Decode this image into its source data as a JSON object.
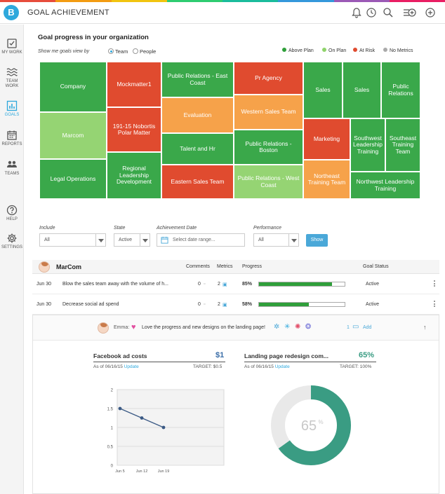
{
  "app": {
    "title": "GOAL ACHIEVEMENT",
    "logo_letter": "B"
  },
  "stripe_colors": [
    "#e74c3c",
    "#f39c12",
    "#f1c40f",
    "#2ecc71",
    "#1abc9c",
    "#3498db",
    "#9b59b6",
    "#e91e63"
  ],
  "header_icons": [
    "bell-icon",
    "clock-icon",
    "search-icon",
    "add-list-icon",
    "add-circle-icon"
  ],
  "sidebar": {
    "items": [
      {
        "label1": "MY WORK",
        "label2": "",
        "icon": "checkbox-icon",
        "active": false
      },
      {
        "label1": "TEAM",
        "label2": "WORK",
        "icon": "waves-icon",
        "active": false
      },
      {
        "label1": "GOALS",
        "label2": "",
        "icon": "bar-chart-icon",
        "active": true
      },
      {
        "label1": "REPORTS",
        "label2": "",
        "icon": "calendar-icon",
        "active": false
      },
      {
        "label1": "TEAMS",
        "label2": "",
        "icon": "people-icon",
        "active": false
      },
      {
        "label1": "HELP",
        "label2": "",
        "icon": "help-icon",
        "active": false
      },
      {
        "label1": "SETTINGS",
        "label2": "",
        "icon": "gear-icon",
        "active": false
      }
    ]
  },
  "overview": {
    "title": "Goal progress in your organization",
    "view_by_label": "Show me goals view by",
    "view_options": [
      {
        "label": "Team",
        "selected": true
      },
      {
        "label": "People",
        "selected": false
      }
    ],
    "legend": [
      {
        "label": "Above Plan",
        "color": "#2f9f3a"
      },
      {
        "label": "On Plan",
        "color": "#8fd36b"
      },
      {
        "label": "At Risk",
        "color": "#e04b2f"
      },
      {
        "label": "No Metrics",
        "color": "#aaaaaa"
      }
    ]
  },
  "treemap": {
    "colors": {
      "above": "#3aa84a",
      "on": "#95d473",
      "risk": "#e04b2f",
      "nometric": "#f6a24a"
    },
    "tiles": [
      {
        "label": "Company",
        "status": "above"
      },
      {
        "label": "Marcom",
        "status": "on"
      },
      {
        "label": "Legal Operations",
        "status": "above"
      },
      {
        "label": "Mockmatter1",
        "status": "risk"
      },
      {
        "label": "191-15 Nobortis Polar Matter",
        "status": "risk"
      },
      {
        "label": "Regional Leadership Development",
        "status": "above"
      },
      {
        "label": "Public Relations - East Coast",
        "status": "above"
      },
      {
        "label": "Evaluation",
        "status": "nometric"
      },
      {
        "label": "Talent and Hr",
        "status": "above"
      },
      {
        "label": "Eastern Sales Team",
        "status": "risk"
      },
      {
        "label": "Pr Agency",
        "status": "risk"
      },
      {
        "label": "Western Sales Team",
        "status": "nometric"
      },
      {
        "label": "Public Relations - Boston",
        "status": "above"
      },
      {
        "label": "Public Relations - West Coast",
        "status": "on"
      },
      {
        "label": "Sales",
        "status": "above"
      },
      {
        "label": "Sales",
        "status": "above"
      },
      {
        "label": "Public Relations",
        "status": "above"
      },
      {
        "label": "Marketing",
        "status": "risk"
      },
      {
        "label": "Northeast Training Team",
        "status": "nometric"
      },
      {
        "label": "Southwest Leadership Training",
        "status": "above"
      },
      {
        "label": "Southeast Training Team",
        "status": "above"
      },
      {
        "label": "Northwest Leadership Training",
        "status": "above"
      }
    ]
  },
  "filters": {
    "include_label": "Include",
    "include_value": "All",
    "state_label": "State",
    "state_value": "Active",
    "date_label": "Achievement Date",
    "date_placeholder": "Select date range...",
    "performance_label": "Performance",
    "performance_value": "All",
    "show_label": "Show"
  },
  "group": {
    "name": "MarCom",
    "col_comments": "Comments",
    "col_metrics": "Metrics",
    "col_progress": "Progress",
    "col_status": "Goal Status"
  },
  "goals": [
    {
      "date": "Jun 30",
      "title": "Blow the sales team away with the volume of h...",
      "comments": "0",
      "metrics": "2",
      "progress": "85%",
      "progress_value": 0.85,
      "status": "Active"
    },
    {
      "date": "Jun 30",
      "title": "Decrease social ad spend",
      "comments": "0",
      "metrics": "2",
      "progress": "58%",
      "progress_value": 0.58,
      "status": "Active"
    }
  ],
  "comment": {
    "author": "Emma:",
    "text": "Love the progress and new designs on the landing page!",
    "count": "1",
    "add_label": "Add"
  },
  "metric1": {
    "title": "Facebook ad costs",
    "value": "$1",
    "as_of": "As of 06/16/15",
    "update_label": "Update",
    "target": "TARGET: $0.5",
    "color": "#3b6ea8"
  },
  "metric2": {
    "title": "Landing page redesign com...",
    "value": "65%",
    "as_of": "As of 06/16/15",
    "update_label": "Update",
    "target": "TARGET: 100%",
    "color": "#3a9c83"
  },
  "chart_data": [
    {
      "type": "line",
      "title": "",
      "x": [
        "Jun 5",
        "Jun 12",
        "Jun 19"
      ],
      "series": [
        {
          "values": [
            1.5,
            1.25,
            1.0
          ]
        }
      ],
      "yticks": [
        "0",
        "0.5",
        "1",
        "1.5",
        "2"
      ],
      "ylim": [
        0,
        2
      ],
      "grid": true,
      "color": "#3b5a85"
    },
    {
      "type": "pie",
      "title": "",
      "values": [
        65,
        35
      ],
      "center_value": "65",
      "center_unit": "%",
      "colors": [
        "#3a9c83",
        "#e9e9e9"
      ]
    }
  ]
}
